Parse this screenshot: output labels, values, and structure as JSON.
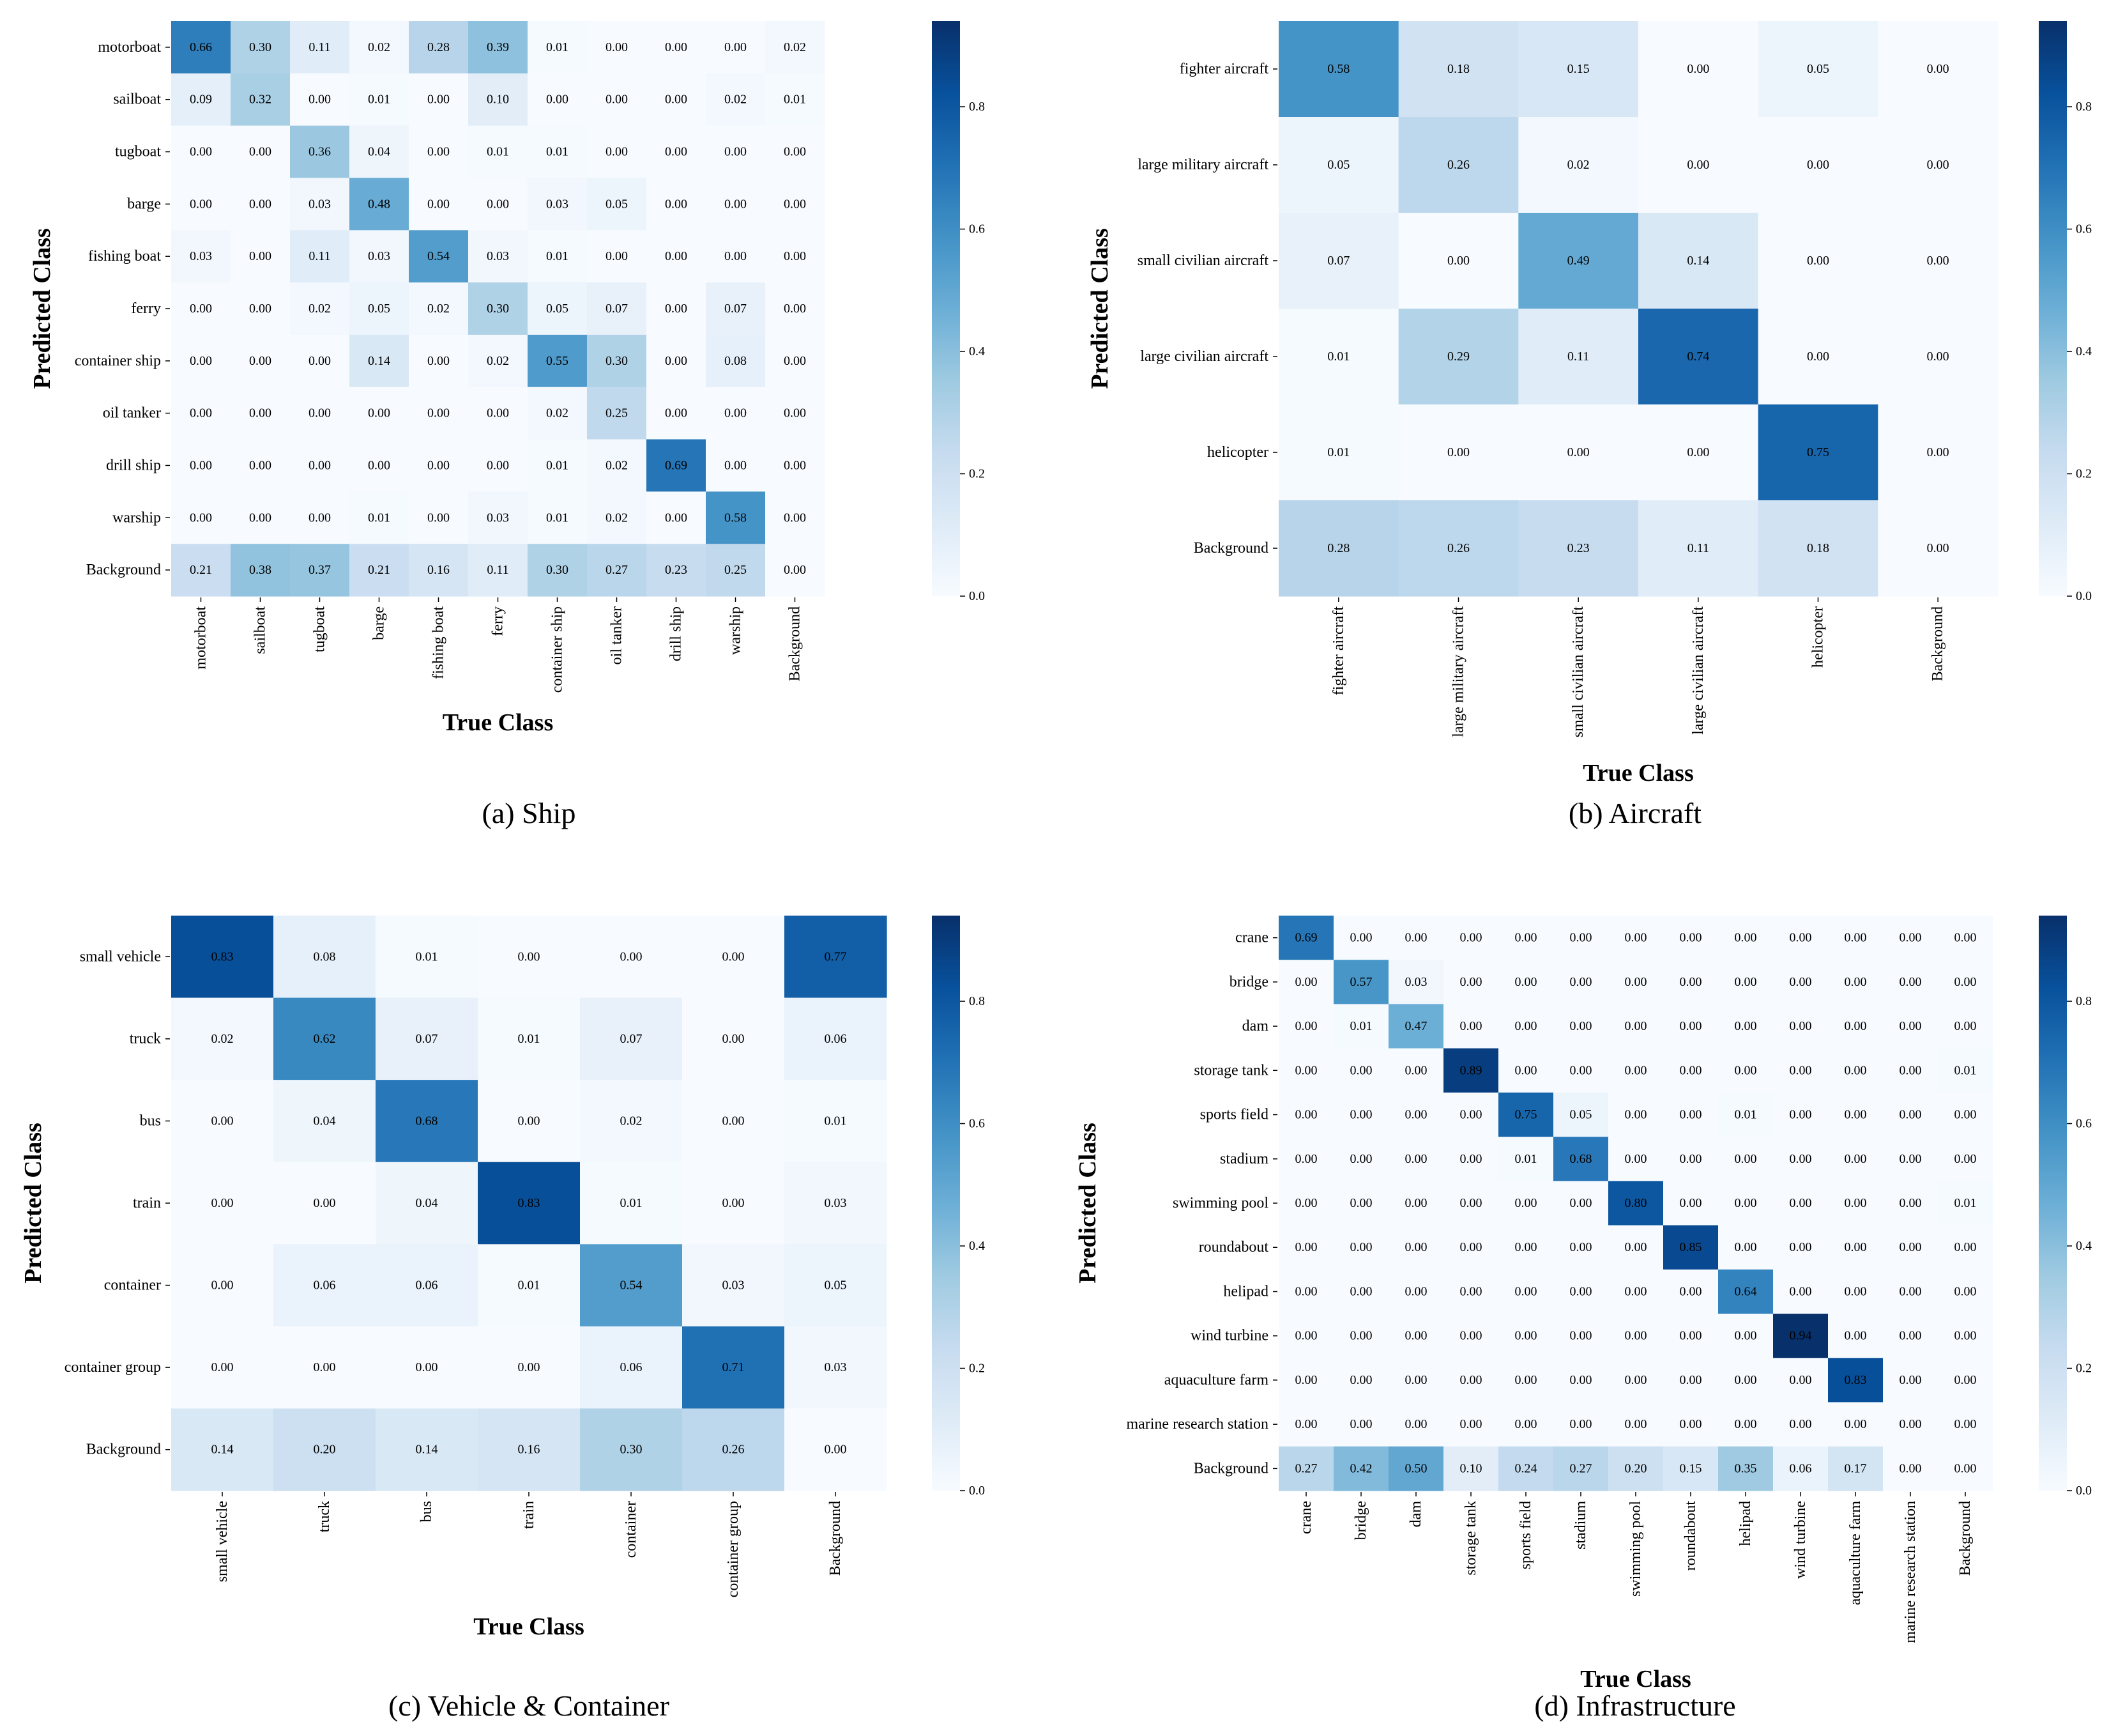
{
  "colors": {
    "low": "#f7fbff",
    "high": "#08306b",
    "text_dark": "#000000",
    "text_light": "#ffffff",
    "tick": "#000000"
  },
  "chart_data": [
    {
      "type": "heatmap",
      "caption": "(a) Ship",
      "xlabel": "True Class",
      "ylabel": "Predicted Class",
      "classes": [
        "motorboat",
        "sailboat",
        "tugboat",
        "barge",
        "fishing boat",
        "ferry",
        "container ship",
        "oil tanker",
        "drill ship",
        "warship",
        "Background"
      ],
      "matrix": [
        [
          "0.66",
          "0.30",
          "0.11",
          "0.02",
          "0.28",
          "0.39",
          "0.01",
          "0.00",
          "0.00",
          "0.00",
          "0.02"
        ],
        [
          "0.09",
          "0.32",
          "0.00",
          "0.01",
          "0.00",
          "0.10",
          "0.00",
          "0.00",
          "0.00",
          "0.02",
          "0.01"
        ],
        [
          "0.00",
          "0.00",
          "0.36",
          "0.04",
          "0.00",
          "0.01",
          "0.01",
          "0.00",
          "0.00",
          "0.00",
          "0.00"
        ],
        [
          "0.00",
          "0.00",
          "0.03",
          "0.48",
          "0.00",
          "0.00",
          "0.03",
          "0.05",
          "0.00",
          "0.00",
          "0.00"
        ],
        [
          "0.03",
          "0.00",
          "0.11",
          "0.03",
          "0.54",
          "0.03",
          "0.01",
          "0.00",
          "0.00",
          "0.00",
          "0.00"
        ],
        [
          "0.00",
          "0.00",
          "0.02",
          "0.05",
          "0.02",
          "0.30",
          "0.05",
          "0.07",
          "0.00",
          "0.07",
          "0.00"
        ],
        [
          "0.00",
          "0.00",
          "0.00",
          "0.14",
          "0.00",
          "0.02",
          "0.55",
          "0.30",
          "0.00",
          "0.08",
          "0.00"
        ],
        [
          "0.00",
          "0.00",
          "0.00",
          "0.00",
          "0.00",
          "0.00",
          "0.02",
          "0.25",
          "0.00",
          "0.00",
          "0.00"
        ],
        [
          "0.00",
          "0.00",
          "0.00",
          "0.00",
          "0.00",
          "0.00",
          "0.01",
          "0.02",
          "0.69",
          "0.00",
          "0.00"
        ],
        [
          "0.00",
          "0.00",
          "0.00",
          "0.01",
          "0.00",
          "0.03",
          "0.01",
          "0.02",
          "0.00",
          "0.58",
          "0.00"
        ],
        [
          "0.21",
          "0.38",
          "0.37",
          "0.21",
          "0.16",
          "0.11",
          "0.30",
          "0.27",
          "0.23",
          "0.25",
          "0.00"
        ]
      ],
      "colorbar": {
        "min": 0.0,
        "max": 0.94,
        "ticks": [
          "0.0",
          "0.2",
          "0.4",
          "0.6",
          "0.8"
        ]
      }
    },
    {
      "type": "heatmap",
      "caption": "(b) Aircraft",
      "xlabel": "True Class",
      "ylabel": "Predicted Class",
      "classes": [
        "fighter aircraft",
        "large military aircraft",
        "small civilian aircraft",
        "large civilian aircraft",
        "helicopter",
        "Background"
      ],
      "matrix": [
        [
          "0.58",
          "0.18",
          "0.15",
          "0.00",
          "0.05",
          "0.00"
        ],
        [
          "0.05",
          "0.26",
          "0.02",
          "0.00",
          "0.00",
          "0.00"
        ],
        [
          "0.07",
          "0.00",
          "0.49",
          "0.14",
          "0.00",
          "0.00"
        ],
        [
          "0.01",
          "0.29",
          "0.11",
          "0.74",
          "0.00",
          "0.00"
        ],
        [
          "0.01",
          "0.00",
          "0.00",
          "0.00",
          "0.75",
          "0.00"
        ],
        [
          "0.28",
          "0.26",
          "0.23",
          "0.11",
          "0.18",
          "0.00"
        ]
      ],
      "colorbar": {
        "min": 0.0,
        "max": 0.94,
        "ticks": [
          "0.0",
          "0.2",
          "0.4",
          "0.6",
          "0.8"
        ]
      }
    },
    {
      "type": "heatmap",
      "caption": "(c) Vehicle & Container",
      "xlabel": "True Class",
      "ylabel": "Predicted Class",
      "classes": [
        "small vehicle",
        "truck",
        "bus",
        "train",
        "container",
        "container group",
        "Background"
      ],
      "matrix": [
        [
          "0.83",
          "0.08",
          "0.01",
          "0.00",
          "0.00",
          "0.00",
          "0.77"
        ],
        [
          "0.02",
          "0.62",
          "0.07",
          "0.01",
          "0.07",
          "0.00",
          "0.06"
        ],
        [
          "0.00",
          "0.04",
          "0.68",
          "0.00",
          "0.02",
          "0.00",
          "0.01"
        ],
        [
          "0.00",
          "0.00",
          "0.04",
          "0.83",
          "0.01",
          "0.00",
          "0.03"
        ],
        [
          "0.00",
          "0.06",
          "0.06",
          "0.01",
          "0.54",
          "0.03",
          "0.05"
        ],
        [
          "0.00",
          "0.00",
          "0.00",
          "0.00",
          "0.06",
          "0.71",
          "0.03"
        ],
        [
          "0.14",
          "0.20",
          "0.14",
          "0.16",
          "0.30",
          "0.26",
          "0.00"
        ]
      ],
      "colorbar": {
        "min": 0.0,
        "max": 0.94,
        "ticks": [
          "0.0",
          "0.2",
          "0.4",
          "0.6",
          "0.8"
        ]
      }
    },
    {
      "type": "heatmap",
      "caption": "(d) Infrastructure",
      "xlabel": "True Class",
      "ylabel": "Predicted Class",
      "classes": [
        "crane",
        "bridge",
        "dam",
        "storage tank",
        "sports field",
        "stadium",
        "swimming pool",
        "roundabout",
        "helipad",
        "wind turbine",
        "aquaculture farm",
        "marine research station",
        "Background"
      ],
      "matrix": [
        [
          "0.69",
          "0.00",
          "0.00",
          "0.00",
          "0.00",
          "0.00",
          "0.00",
          "0.00",
          "0.00",
          "0.00",
          "0.00",
          "0.00",
          "0.00"
        ],
        [
          "0.00",
          "0.57",
          "0.03",
          "0.00",
          "0.00",
          "0.00",
          "0.00",
          "0.00",
          "0.00",
          "0.00",
          "0.00",
          "0.00",
          "0.00"
        ],
        [
          "0.00",
          "0.01",
          "0.47",
          "0.00",
          "0.00",
          "0.00",
          "0.00",
          "0.00",
          "0.00",
          "0.00",
          "0.00",
          "0.00",
          "0.00"
        ],
        [
          "0.00",
          "0.00",
          "0.00",
          "0.89",
          "0.00",
          "0.00",
          "0.00",
          "0.00",
          "0.00",
          "0.00",
          "0.00",
          "0.00",
          "0.01"
        ],
        [
          "0.00",
          "0.00",
          "0.00",
          "0.00",
          "0.75",
          "0.05",
          "0.00",
          "0.00",
          "0.01",
          "0.00",
          "0.00",
          "0.00",
          "0.00"
        ],
        [
          "0.00",
          "0.00",
          "0.00",
          "0.00",
          "0.01",
          "0.68",
          "0.00",
          "0.00",
          "0.00",
          "0.00",
          "0.00",
          "0.00",
          "0.00"
        ],
        [
          "0.00",
          "0.00",
          "0.00",
          "0.00",
          "0.00",
          "0.00",
          "0.80",
          "0.00",
          "0.00",
          "0.00",
          "0.00",
          "0.00",
          "0.01"
        ],
        [
          "0.00",
          "0.00",
          "0.00",
          "0.00",
          "0.00",
          "0.00",
          "0.00",
          "0.85",
          "0.00",
          "0.00",
          "0.00",
          "0.00",
          "0.00"
        ],
        [
          "0.00",
          "0.00",
          "0.00",
          "0.00",
          "0.00",
          "0.00",
          "0.00",
          "0.00",
          "0.64",
          "0.00",
          "0.00",
          "0.00",
          "0.00"
        ],
        [
          "0.00",
          "0.00",
          "0.00",
          "0.00",
          "0.00",
          "0.00",
          "0.00",
          "0.00",
          "0.00",
          "0.94",
          "0.00",
          "0.00",
          "0.00"
        ],
        [
          "0.00",
          "0.00",
          "0.00",
          "0.00",
          "0.00",
          "0.00",
          "0.00",
          "0.00",
          "0.00",
          "0.00",
          "0.83",
          "0.00",
          "0.00"
        ],
        [
          "0.00",
          "0.00",
          "0.00",
          "0.00",
          "0.00",
          "0.00",
          "0.00",
          "0.00",
          "0.00",
          "0.00",
          "0.00",
          "0.00",
          "0.00"
        ],
        [
          "0.27",
          "0.42",
          "0.50",
          "0.10",
          "0.24",
          "0.27",
          "0.20",
          "0.15",
          "0.35",
          "0.06",
          "0.17",
          "0.00",
          "0.00"
        ]
      ],
      "colorbar": {
        "min": 0.0,
        "max": 0.94,
        "ticks": [
          "0.0",
          "0.2",
          "0.4",
          "0.6",
          "0.8"
        ]
      }
    }
  ]
}
